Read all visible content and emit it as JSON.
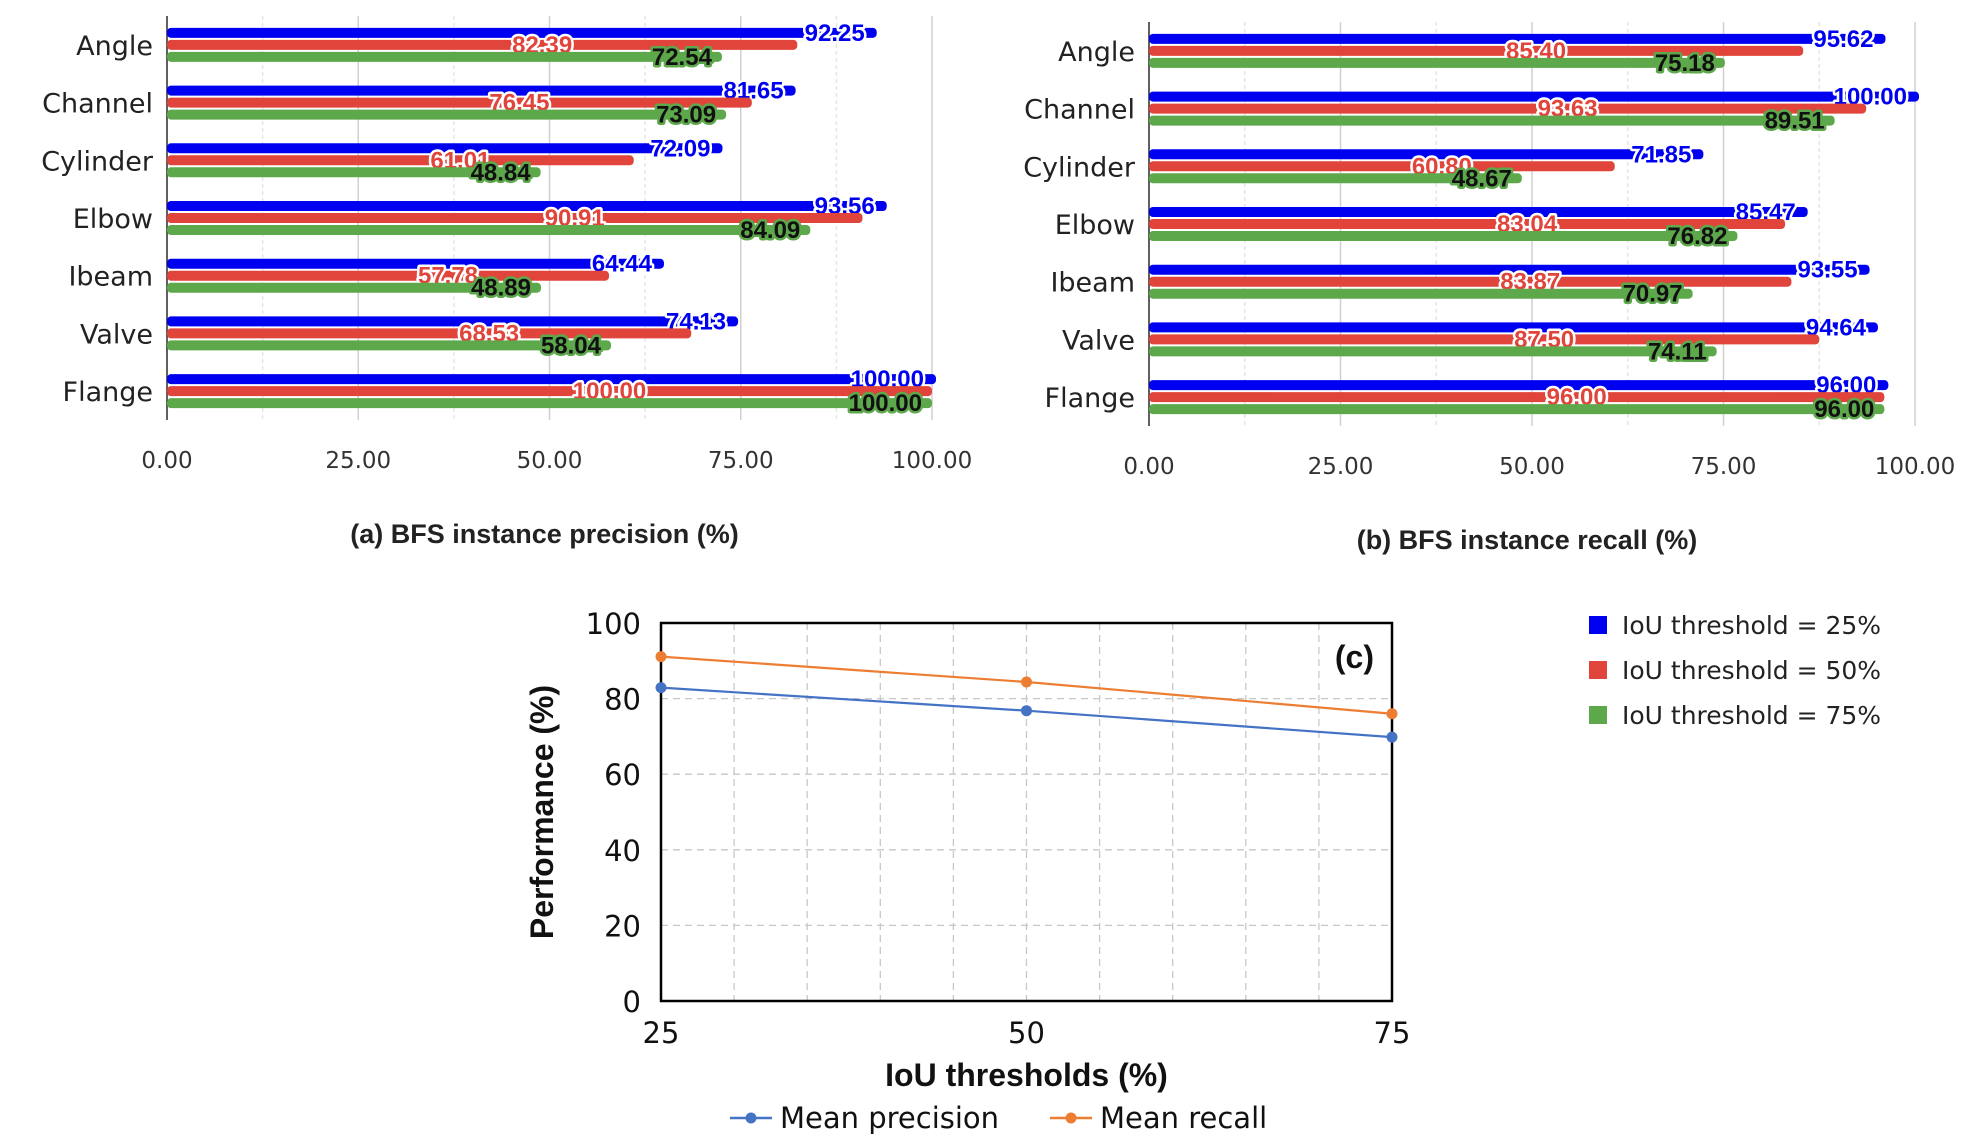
{
  "chart_data": [
    {
      "id": "precision",
      "type": "bar",
      "orientation": "horizontal",
      "title": "(a) BFS instance precision (%)",
      "categories": [
        "Angle",
        "Channel",
        "Cylinder",
        "Elbow",
        "Ibeam",
        "Valve",
        "Flange"
      ],
      "series": [
        {
          "name": "IoU threshold = 25%",
          "color": "#0000f0",
          "values": [
            92.25,
            81.65,
            72.09,
            93.56,
            64.44,
            74.13,
            100.0
          ]
        },
        {
          "name": "IoU threshold = 50%",
          "color": "#e0443a",
          "values": [
            82.39,
            76.45,
            61.01,
            90.91,
            57.78,
            68.53,
            100.0
          ]
        },
        {
          "name": "IoU threshold = 75%",
          "color": "#5ea84c",
          "values": [
            72.54,
            73.09,
            48.84,
            84.09,
            48.89,
            58.04,
            100.0
          ]
        }
      ],
      "xlim": [
        0,
        100
      ],
      "xticks": [
        "0.00",
        "25.00",
        "50.00",
        "75.00",
        "100.00"
      ]
    },
    {
      "id": "recall",
      "type": "bar",
      "orientation": "horizontal",
      "title": "(b) BFS instance recall (%)",
      "categories": [
        "Angle",
        "Channel",
        "Cylinder",
        "Elbow",
        "Ibeam",
        "Valve",
        "Flange"
      ],
      "series": [
        {
          "name": "IoU threshold = 25%",
          "color": "#0000f0",
          "values": [
            95.62,
            100.0,
            71.85,
            85.47,
            93.55,
            94.64,
            96.0
          ]
        },
        {
          "name": "IoU threshold = 50%",
          "color": "#e0443a",
          "values": [
            85.4,
            93.63,
            60.8,
            83.04,
            83.87,
            87.5,
            96.0
          ]
        },
        {
          "name": "IoU threshold = 75%",
          "color": "#5ea84c",
          "values": [
            75.18,
            89.51,
            48.67,
            76.82,
            70.97,
            74.11,
            96.0
          ]
        }
      ],
      "xlim": [
        0,
        100
      ],
      "xticks": [
        "0.00",
        "25.00",
        "50.00",
        "75.00",
        "100.00"
      ]
    },
    {
      "id": "mean",
      "type": "line",
      "title": "(c)",
      "xlabel": "IoU thresholds (%)",
      "ylabel": "Performance (%)",
      "x": [
        25,
        50,
        75
      ],
      "xticks": [
        25,
        50,
        75
      ],
      "yticks": [
        0,
        20,
        40,
        60,
        80,
        100
      ],
      "ylim": [
        0,
        100
      ],
      "series": [
        {
          "name": "Mean precision",
          "color": "#4472c4",
          "values": [
            82.9,
            76.8,
            69.8
          ]
        },
        {
          "name": "Mean recall",
          "color": "#ed7d31",
          "values": [
            91.1,
            84.4,
            76.0
          ]
        }
      ]
    }
  ],
  "legend": {
    "entries": [
      {
        "label": "IoU threshold = 25%",
        "color": "#0000f0"
      },
      {
        "label": "IoU threshold = 50%",
        "color": "#e0443a"
      },
      {
        "label": "IoU threshold = 75%",
        "color": "#5ea84c"
      }
    ]
  }
}
